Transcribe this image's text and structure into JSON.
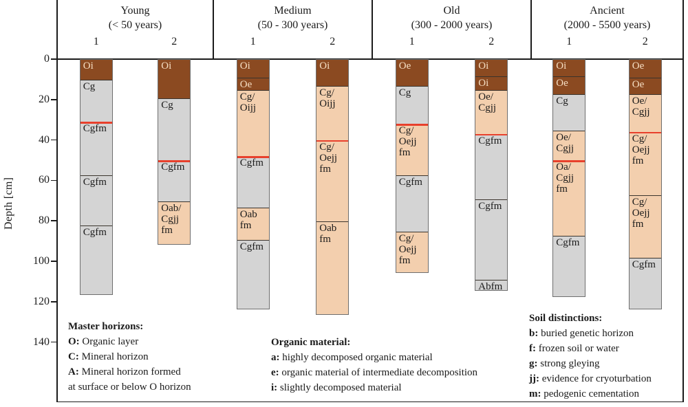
{
  "axis": {
    "label": "Depth [cm]",
    "ticks": [
      0,
      20,
      40,
      60,
      80,
      100,
      120,
      140
    ]
  },
  "colors": {
    "organic": "#8B4A21",
    "mineral": "#D4D4D4",
    "mixed": "#F3CFAE",
    "organic_text": "#F6DFC4",
    "dark_text": "#1a1a1a",
    "red_line": "#E8402C",
    "frame": "#1a1a1a"
  },
  "chart_data": {
    "type": "stacked-depth-columns",
    "ylabel": "Depth [cm]",
    "y_ticks": [
      0,
      20,
      40,
      60,
      80,
      100,
      120,
      140
    ],
    "y_unit": "cm",
    "groups": [
      {
        "name": "Young",
        "age_range": "(< 50 years)",
        "columns": [
          {
            "id": "1",
            "red_line_cm": 31,
            "segments": [
              {
                "lines": [
                  "Oi"
                ],
                "from": 0,
                "to": 10,
                "type": "organic"
              },
              {
                "lines": [
                  "Cg"
                ],
                "from": 10,
                "to": 31,
                "type": "mineral"
              },
              {
                "lines": [
                  "Cgfm"
                ],
                "from": 31,
                "to": 57,
                "type": "mineral"
              },
              {
                "lines": [
                  "Cgfm"
                ],
                "from": 57,
                "to": 82,
                "type": "mineral"
              },
              {
                "lines": [
                  "Cgfm"
                ],
                "from": 82,
                "to": 116,
                "type": "mineral"
              }
            ]
          },
          {
            "id": "2",
            "red_line_cm": 50,
            "segments": [
              {
                "lines": [
                  "Oi"
                ],
                "from": 0,
                "to": 19,
                "type": "organic"
              },
              {
                "lines": [
                  "Cg"
                ],
                "from": 19,
                "to": 50,
                "type": "mineral"
              },
              {
                "lines": [
                  "Cgfm"
                ],
                "from": 50,
                "to": 70,
                "type": "mineral"
              },
              {
                "lines": [
                  "Oab/",
                  "Cgjj",
                  "fm"
                ],
                "from": 70,
                "to": 91,
                "type": "mixed"
              }
            ]
          }
        ]
      },
      {
        "name": "Medium",
        "age_range": "(50 - 300 years)",
        "columns": [
          {
            "id": "1",
            "red_line_cm": 48,
            "segments": [
              {
                "lines": [
                  "Oi"
                ],
                "from": 0,
                "to": 9,
                "type": "organic"
              },
              {
                "lines": [
                  "Oe"
                ],
                "from": 9,
                "to": 15,
                "type": "organic"
              },
              {
                "lines": [
                  "Cg/",
                  "Oijj"
                ],
                "from": 15,
                "to": 48,
                "type": "mixed"
              },
              {
                "lines": [
                  "Cgfm"
                ],
                "from": 48,
                "to": 73,
                "type": "mineral"
              },
              {
                "lines": [
                  "Oab",
                  "fm"
                ],
                "from": 73,
                "to": 89,
                "type": "mixed"
              },
              {
                "lines": [
                  "Cgfm"
                ],
                "from": 89,
                "to": 123,
                "type": "mineral"
              }
            ]
          },
          {
            "id": "2",
            "red_line_cm": 40,
            "segments": [
              {
                "lines": [
                  "Oi"
                ],
                "from": 0,
                "to": 13,
                "type": "organic"
              },
              {
                "lines": [
                  "Cg/",
                  "Oijj"
                ],
                "from": 13,
                "to": 40,
                "type": "mixed"
              },
              {
                "lines": [
                  "Cg/",
                  "Oejj",
                  "fm"
                ],
                "from": 40,
                "to": 80,
                "type": "mixed"
              },
              {
                "lines": [
                  "Oab",
                  "fm"
                ],
                "from": 80,
                "to": 126,
                "type": "mixed"
              }
            ]
          }
        ]
      },
      {
        "name": "Old",
        "age_range": "(300 -  2000 years)",
        "columns": [
          {
            "id": "1",
            "red_line_cm": 32,
            "segments": [
              {
                "lines": [
                  "Oe"
                ],
                "from": 0,
                "to": 13,
                "type": "organic"
              },
              {
                "lines": [
                  "Cg"
                ],
                "from": 13,
                "to": 32,
                "type": "mineral"
              },
              {
                "lines": [
                  "Cg/",
                  "Oejj",
                  "fm"
                ],
                "from": 32,
                "to": 57,
                "type": "mixed"
              },
              {
                "lines": [
                  "Cgfm"
                ],
                "from": 57,
                "to": 85,
                "type": "mineral"
              },
              {
                "lines": [
                  "Cg/",
                  "Oejj",
                  "fm"
                ],
                "from": 85,
                "to": 105,
                "type": "mixed"
              }
            ]
          },
          {
            "id": "2",
            "red_line_cm": 37,
            "segments": [
              {
                "lines": [
                  "Oi"
                ],
                "from": 0,
                "to": 8,
                "type": "organic"
              },
              {
                "lines": [
                  "Oi"
                ],
                "from": 8,
                "to": 15,
                "type": "organic"
              },
              {
                "lines": [
                  "Oe/",
                  "Cgjj"
                ],
                "from": 15,
                "to": 37,
                "type": "mixed"
              },
              {
                "lines": [
                  "Cgfm"
                ],
                "from": 37,
                "to": 69,
                "type": "mineral"
              },
              {
                "lines": [
                  "Cgfm"
                ],
                "from": 69,
                "to": 109,
                "type": "mineral"
              },
              {
                "lines": [
                  "Abfm"
                ],
                "from": 109,
                "to": 114,
                "type": "mineral"
              }
            ]
          }
        ]
      },
      {
        "name": "Ancient",
        "age_range": "(2000 - 5500 years)",
        "columns": [
          {
            "id": "1",
            "red_line_cm": 50,
            "segments": [
              {
                "lines": [
                  "Oi"
                ],
                "from": 0,
                "to": 8,
                "type": "organic"
              },
              {
                "lines": [
                  "Oe"
                ],
                "from": 8,
                "to": 17,
                "type": "organic"
              },
              {
                "lines": [
                  "Cg"
                ],
                "from": 17,
                "to": 35,
                "type": "mineral"
              },
              {
                "lines": [
                  "Oe/",
                  "Cgjj"
                ],
                "from": 35,
                "to": 50,
                "type": "mixed"
              },
              {
                "lines": [
                  "Oa/",
                  "Cgjj",
                  "fm"
                ],
                "from": 50,
                "to": 87,
                "type": "mixed"
              },
              {
                "lines": [
                  "Cgfm"
                ],
                "from": 87,
                "to": 117,
                "type": "mineral"
              }
            ]
          },
          {
            "id": "2",
            "red_line_cm": 36,
            "segments": [
              {
                "lines": [
                  "Oe"
                ],
                "from": 0,
                "to": 9,
                "type": "organic"
              },
              {
                "lines": [
                  "Oe"
                ],
                "from": 9,
                "to": 17,
                "type": "organic"
              },
              {
                "lines": [
                  "Oe/",
                  "Cgjj"
                ],
                "from": 17,
                "to": 36,
                "type": "mixed"
              },
              {
                "lines": [
                  "Cg/",
                  "Oejj",
                  "fm"
                ],
                "from": 36,
                "to": 67,
                "type": "mixed"
              },
              {
                "lines": [
                  "Cg/",
                  "Oejj",
                  "fm"
                ],
                "from": 67,
                "to": 98,
                "type": "mixed"
              },
              {
                "lines": [
                  "Cgfm"
                ],
                "from": 98,
                "to": 123,
                "type": "mineral"
              }
            ]
          }
        ]
      }
    ]
  },
  "legends": {
    "master_horizons": {
      "title": "Master horizons:",
      "items": [
        {
          "b": "O:",
          "t": "Organic layer"
        },
        {
          "b": "C:",
          "t": "Mineral horizon"
        },
        {
          "b": "A:",
          "t": "Mineral horizon formed"
        },
        {
          "b": "",
          "t": "at surface or below O horizon"
        }
      ]
    },
    "organic_material": {
      "title": "Organic material:",
      "items": [
        {
          "b": "a:",
          "t": "highly decomposed organic material"
        },
        {
          "b": "e:",
          "t": "organic material of intermediate decomposition"
        },
        {
          "b": "i:",
          "t": "slightly decomposed material"
        }
      ]
    },
    "soil_distinctions": {
      "title": "Soil distinctions:",
      "items": [
        {
          "b": "b:",
          "t": "buried genetic horizon"
        },
        {
          "b": "f:",
          "t": "frozen soil or water"
        },
        {
          "b": "g:",
          "t": "strong gleying"
        },
        {
          "b": "jj:",
          "t": "evidence for cryoturbation"
        },
        {
          "b": "m:",
          "t": "pedogenic cementation"
        }
      ]
    }
  }
}
